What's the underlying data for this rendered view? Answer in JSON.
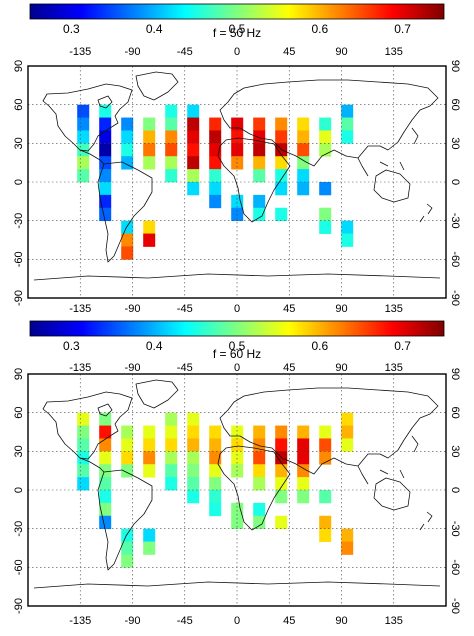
{
  "colorbar": {
    "min": 0.25,
    "max": 0.75,
    "ticks": [
      0.3,
      0.4,
      0.5,
      0.6,
      0.7
    ],
    "tick_labels": [
      "0.3",
      "0.4",
      "0.5",
      "0.6",
      "0.7"
    ]
  },
  "axes": {
    "lon_ticks": [
      -135,
      -90,
      -45,
      0,
      45,
      90,
      135
    ],
    "lon_labels": [
      "-135",
      "-90",
      "-45",
      "0",
      "45",
      "90",
      "135"
    ],
    "lat_ticks": [
      90,
      60,
      30,
      0,
      -30,
      -60,
      -90
    ],
    "lat_labels_left": [
      "90",
      "60",
      "30",
      "0",
      "-30",
      "-60",
      "-90"
    ],
    "lat_labels_right": [
      "90",
      "60",
      "30",
      "0",
      "-30",
      "-60",
      "-90"
    ]
  },
  "panels": [
    {
      "title": "f = 50 Hz",
      "cells": [
        [
          25,
          55,
          0.35
        ],
        [
          25,
          45,
          0.38
        ],
        [
          25,
          35,
          0.42
        ],
        [
          25,
          25,
          0.47
        ],
        [
          25,
          15,
          0.52
        ],
        [
          25,
          5,
          0.48
        ],
        [
          35,
          55,
          0.45
        ],
        [
          35,
          45,
          0.33
        ],
        [
          35,
          35,
          0.3
        ],
        [
          35,
          25,
          0.27
        ],
        [
          35,
          15,
          0.35
        ],
        [
          35,
          5,
          0.38
        ],
        [
          35,
          -5,
          0.42
        ],
        [
          35,
          -15,
          0.33
        ],
        [
          35,
          -25,
          0.36
        ],
        [
          45,
          45,
          0.38
        ],
        [
          45,
          35,
          0.42
        ],
        [
          45,
          25,
          0.45
        ],
        [
          45,
          15,
          0.4
        ],
        [
          45,
          -35,
          0.42
        ],
        [
          45,
          -45,
          0.62
        ],
        [
          45,
          -55,
          0.65
        ],
        [
          55,
          45,
          0.5
        ],
        [
          55,
          35,
          0.6
        ],
        [
          55,
          25,
          0.63
        ],
        [
          55,
          15,
          0.52
        ],
        [
          55,
          -35,
          0.58
        ],
        [
          55,
          -45,
          0.7
        ],
        [
          65,
          55,
          0.45
        ],
        [
          65,
          45,
          0.48
        ],
        [
          65,
          35,
          0.62
        ],
        [
          65,
          25,
          0.65
        ],
        [
          65,
          15,
          0.52
        ],
        [
          65,
          5,
          0.46
        ],
        [
          75,
          55,
          0.42
        ],
        [
          75,
          45,
          0.72
        ],
        [
          75,
          35,
          0.7
        ],
        [
          75,
          25,
          0.68
        ],
        [
          75,
          15,
          0.72
        ],
        [
          75,
          5,
          0.52
        ],
        [
          75,
          -5,
          0.42
        ],
        [
          85,
          45,
          0.67
        ],
        [
          85,
          35,
          0.72
        ],
        [
          85,
          25,
          0.7
        ],
        [
          85,
          15,
          0.68
        ],
        [
          85,
          5,
          0.46
        ],
        [
          85,
          -5,
          0.42
        ],
        [
          85,
          -15,
          0.38
        ],
        [
          95,
          45,
          0.7
        ],
        [
          95,
          35,
          0.68
        ],
        [
          95,
          25,
          0.7
        ],
        [
          95,
          15,
          0.62
        ],
        [
          95,
          -15,
          0.42
        ],
        [
          95,
          -25,
          0.38
        ],
        [
          105,
          45,
          0.66
        ],
        [
          105,
          35,
          0.7
        ],
        [
          105,
          25,
          0.72
        ],
        [
          105,
          15,
          0.6
        ],
        [
          105,
          5,
          0.48
        ],
        [
          105,
          -15,
          0.4
        ],
        [
          105,
          -25,
          0.45
        ],
        [
          115,
          45,
          0.62
        ],
        [
          115,
          35,
          0.66
        ],
        [
          115,
          25,
          0.72
        ],
        [
          115,
          15,
          0.58
        ],
        [
          115,
          5,
          0.45
        ],
        [
          115,
          -5,
          0.42
        ],
        [
          115,
          -25,
          0.45
        ],
        [
          125,
          45,
          0.58
        ],
        [
          125,
          35,
          0.6
        ],
        [
          125,
          25,
          0.65
        ],
        [
          125,
          15,
          0.5
        ],
        [
          125,
          5,
          0.42
        ],
        [
          125,
          -5,
          0.4
        ],
        [
          135,
          45,
          0.46
        ],
        [
          135,
          35,
          0.55
        ],
        [
          135,
          25,
          0.52
        ],
        [
          135,
          -5,
          0.38
        ],
        [
          135,
          -25,
          0.5
        ],
        [
          135,
          -35,
          0.45
        ],
        [
          145,
          55,
          0.4
        ],
        [
          145,
          45,
          0.48
        ],
        [
          145,
          35,
          0.45
        ],
        [
          145,
          -35,
          0.42
        ],
        [
          145,
          -45,
          0.45
        ]
      ]
    },
    {
      "title": "f = 60 Hz",
      "cells": [
        [
          25,
          55,
          0.55
        ],
        [
          25,
          45,
          0.5
        ],
        [
          25,
          35,
          0.48
        ],
        [
          25,
          25,
          0.45
        ],
        [
          25,
          15,
          0.48
        ],
        [
          25,
          5,
          0.42
        ],
        [
          35,
          55,
          0.5
        ],
        [
          35,
          45,
          0.68
        ],
        [
          35,
          35,
          0.62
        ],
        [
          35,
          25,
          0.55
        ],
        [
          35,
          15,
          0.5
        ],
        [
          35,
          5,
          0.48
        ],
        [
          35,
          -5,
          0.45
        ],
        [
          35,
          -15,
          0.5
        ],
        [
          35,
          -25,
          0.38
        ],
        [
          45,
          45,
          0.52
        ],
        [
          45,
          35,
          0.55
        ],
        [
          45,
          25,
          0.58
        ],
        [
          45,
          15,
          0.5
        ],
        [
          45,
          -35,
          0.45
        ],
        [
          45,
          -45,
          0.48
        ],
        [
          45,
          -55,
          0.5
        ],
        [
          55,
          45,
          0.55
        ],
        [
          55,
          35,
          0.58
        ],
        [
          55,
          25,
          0.62
        ],
        [
          55,
          15,
          0.55
        ],
        [
          55,
          -35,
          0.42
        ],
        [
          55,
          -45,
          0.5
        ],
        [
          65,
          55,
          0.52
        ],
        [
          65,
          45,
          0.55
        ],
        [
          65,
          35,
          0.58
        ],
        [
          65,
          25,
          0.52
        ],
        [
          65,
          15,
          0.48
        ],
        [
          65,
          5,
          0.45
        ],
        [
          75,
          55,
          0.55
        ],
        [
          75,
          45,
          0.58
        ],
        [
          75,
          35,
          0.6
        ],
        [
          75,
          25,
          0.52
        ],
        [
          75,
          15,
          0.5
        ],
        [
          75,
          5,
          0.48
        ],
        [
          75,
          -5,
          0.45
        ],
        [
          85,
          45,
          0.58
        ],
        [
          85,
          35,
          0.6
        ],
        [
          85,
          25,
          0.62
        ],
        [
          85,
          15,
          0.55
        ],
        [
          85,
          5,
          0.5
        ],
        [
          85,
          -5,
          0.46
        ],
        [
          85,
          -15,
          0.45
        ],
        [
          95,
          45,
          0.55
        ],
        [
          95,
          35,
          0.58
        ],
        [
          95,
          25,
          0.55
        ],
        [
          95,
          15,
          0.52
        ],
        [
          95,
          -15,
          0.5
        ],
        [
          95,
          -25,
          0.5
        ],
        [
          105,
          45,
          0.6
        ],
        [
          105,
          35,
          0.62
        ],
        [
          105,
          25,
          0.65
        ],
        [
          105,
          15,
          0.58
        ],
        [
          105,
          5,
          0.52
        ],
        [
          105,
          -15,
          0.45
        ],
        [
          105,
          -25,
          0.5
        ],
        [
          115,
          45,
          0.62
        ],
        [
          115,
          35,
          0.68
        ],
        [
          115,
          25,
          0.72
        ],
        [
          115,
          15,
          0.6
        ],
        [
          115,
          5,
          0.55
        ],
        [
          115,
          -5,
          0.5
        ],
        [
          115,
          -25,
          0.55
        ],
        [
          125,
          45,
          0.6
        ],
        [
          125,
          35,
          0.7
        ],
        [
          125,
          25,
          0.7
        ],
        [
          125,
          15,
          0.62
        ],
        [
          125,
          5,
          0.55
        ],
        [
          125,
          -5,
          0.5
        ],
        [
          135,
          45,
          0.55
        ],
        [
          135,
          35,
          0.65
        ],
        [
          135,
          25,
          0.62
        ],
        [
          135,
          -5,
          0.48
        ],
        [
          135,
          -25,
          0.6
        ],
        [
          135,
          -35,
          0.58
        ],
        [
          145,
          55,
          0.58
        ],
        [
          145,
          45,
          0.6
        ],
        [
          145,
          35,
          0.55
        ],
        [
          145,
          -35,
          0.6
        ],
        [
          145,
          -45,
          0.62
        ]
      ]
    }
  ]
}
